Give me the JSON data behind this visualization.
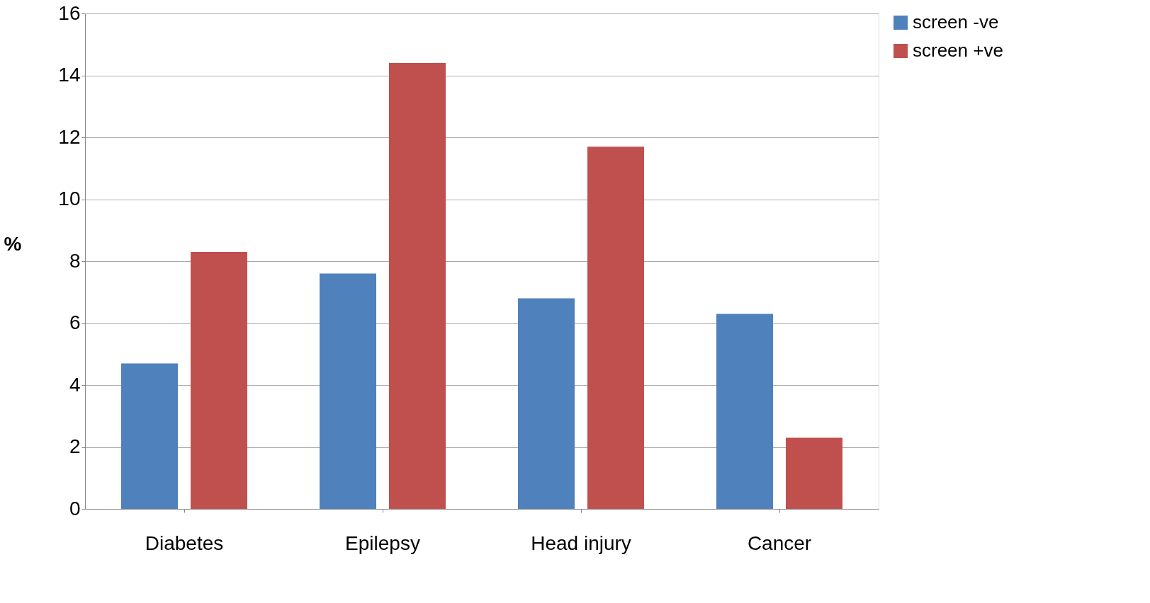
{
  "chart_data": {
    "type": "bar",
    "ylabel": "%",
    "categories": [
      "Diabetes",
      "Epilepsy",
      "Head injury",
      "Cancer"
    ],
    "series": [
      {
        "name": "screen -ve",
        "color": "#4f81bd",
        "values": [
          4.7,
          7.6,
          6.8,
          6.3
        ]
      },
      {
        "name": "screen +ve",
        "color": "#c0504d",
        "values": [
          8.3,
          14.4,
          11.7,
          2.3
        ]
      }
    ],
    "ylim": [
      0,
      16
    ],
    "yticks": [
      0,
      2,
      4,
      6,
      8,
      10,
      12,
      14,
      16
    ],
    "grid": "y",
    "legend": "right"
  }
}
